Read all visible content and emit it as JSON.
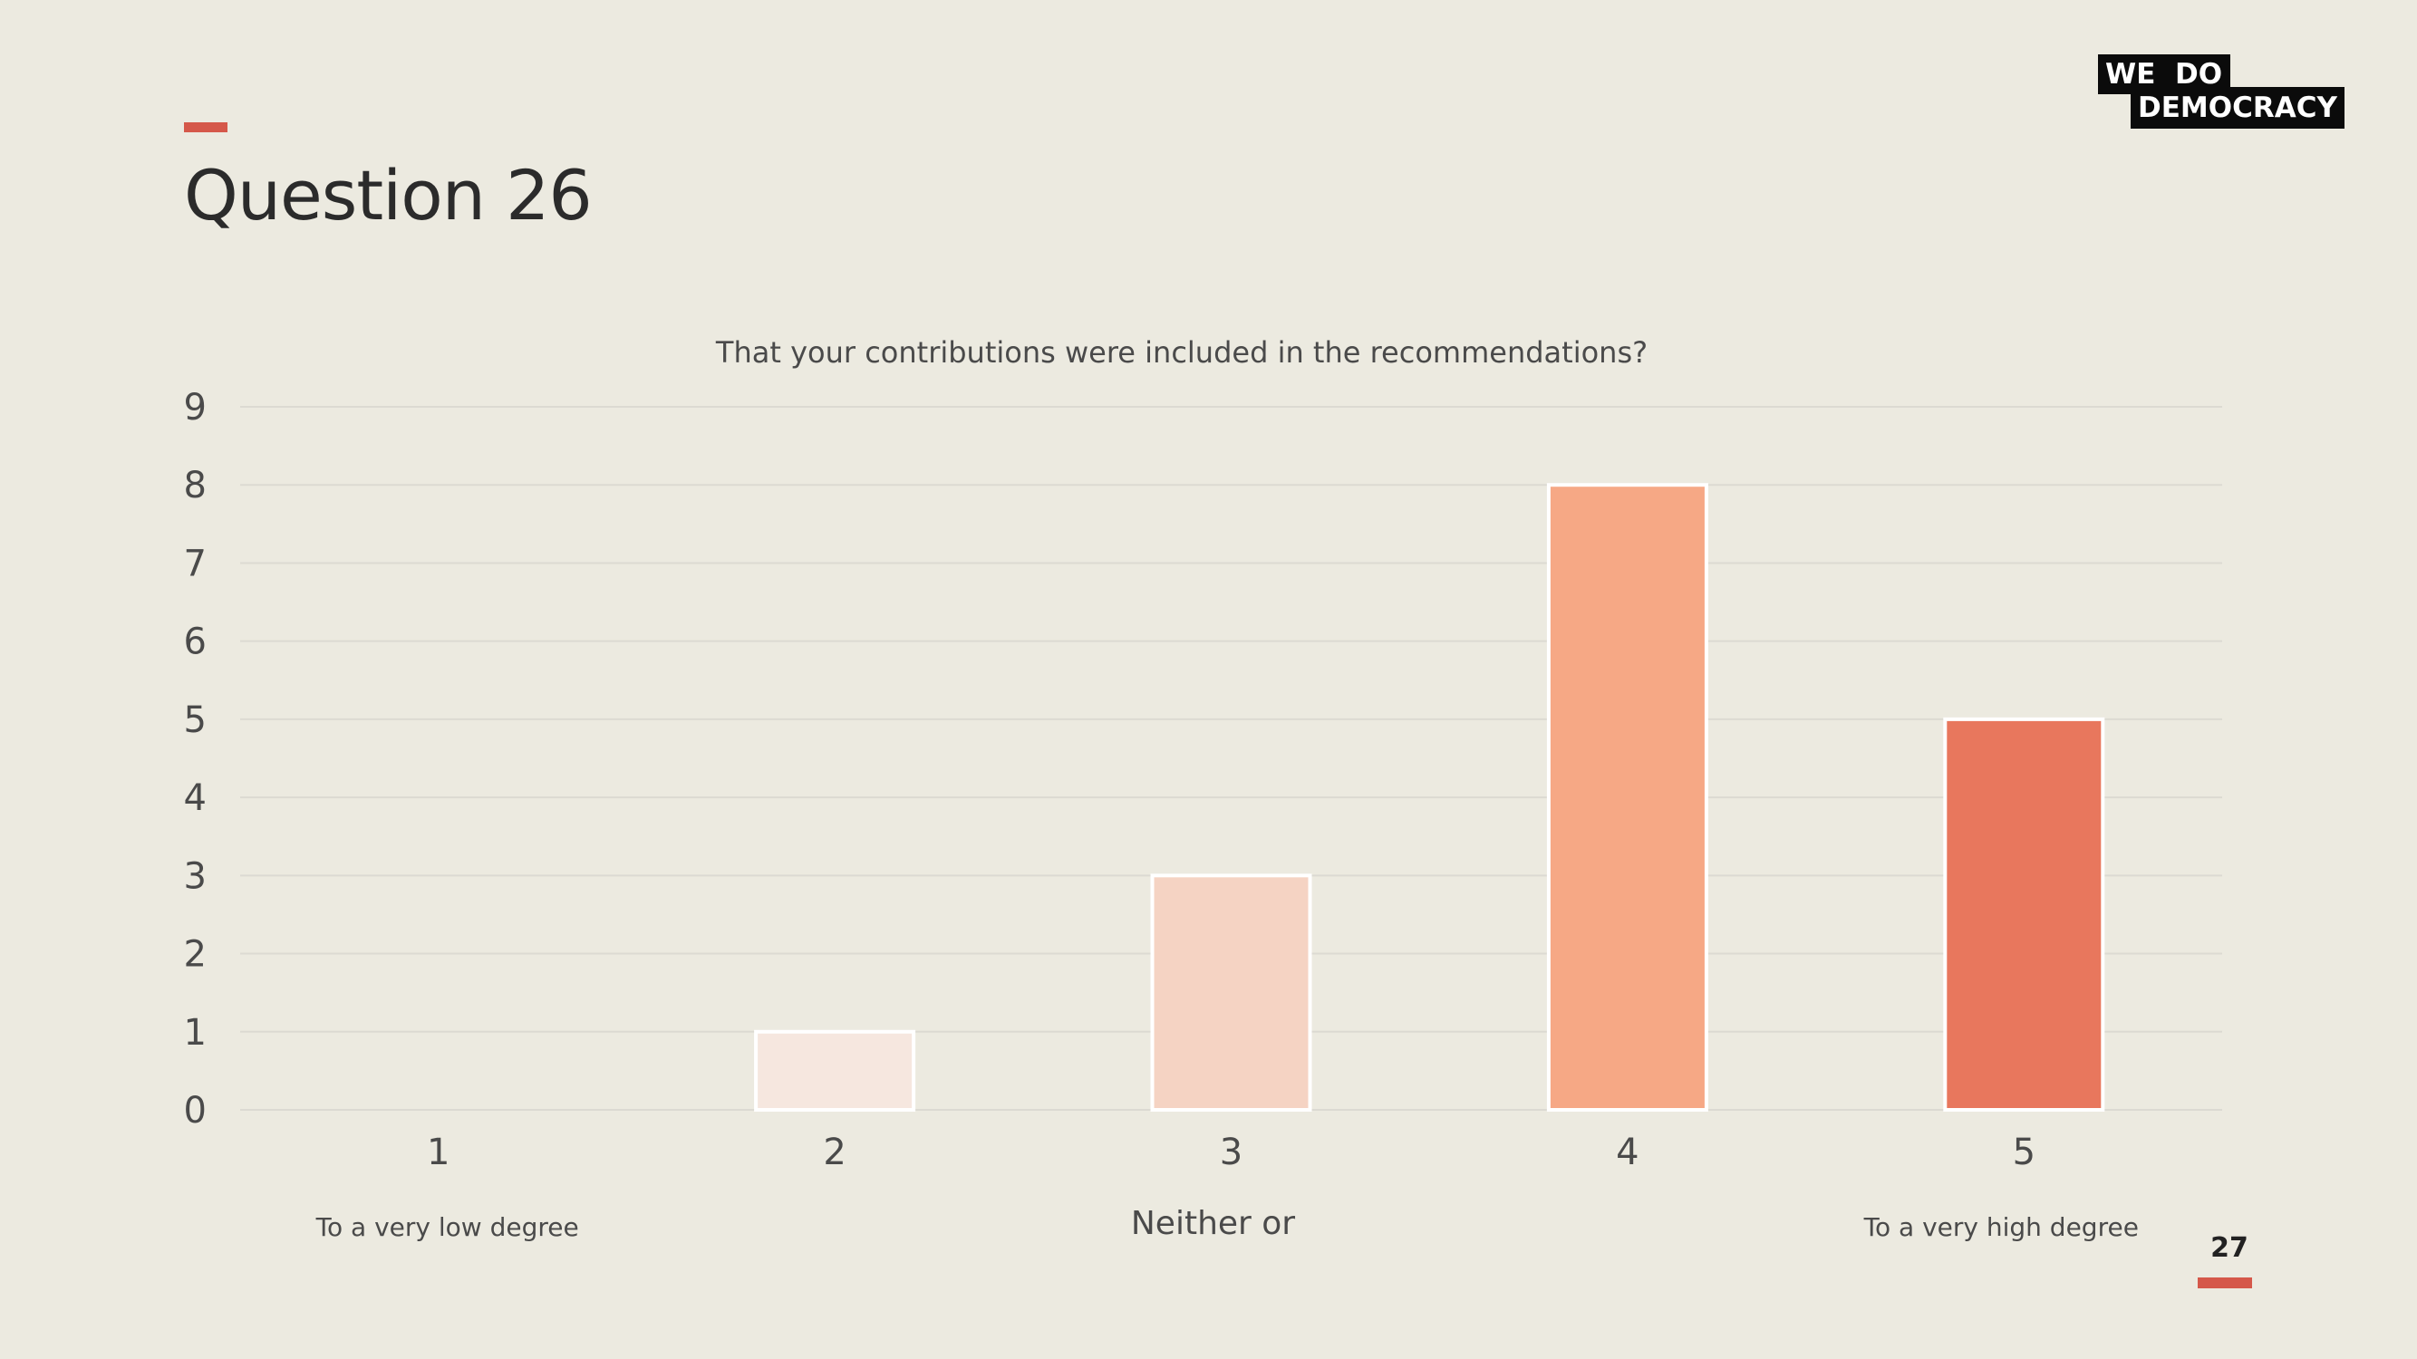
{
  "header": {
    "title": "Question 26"
  },
  "logo": {
    "line1": "WE  DO",
    "line2": "DEMOCRACY"
  },
  "colors": {
    "background": "#eceae0",
    "accent": "#d5584a",
    "grid": "#dcdad2",
    "text": "#4a4a4a",
    "bar_colors": [
      "#fbe9e3",
      "#f6e7df",
      "#f5d3c3",
      "#f6a885",
      "#e8775d"
    ]
  },
  "chart_data": {
    "type": "bar",
    "title": "That your contributions were included in the recommendations?",
    "xlabel": "",
    "ylabel": "",
    "categories": [
      "1",
      "2",
      "3",
      "4",
      "5"
    ],
    "values": [
      0,
      1,
      3,
      8,
      5
    ],
    "ylim": [
      0,
      9
    ],
    "yticks": [
      "0",
      "1",
      "2",
      "3",
      "4",
      "5",
      "6",
      "7",
      "8",
      "9"
    ],
    "grid": true,
    "legend": "none",
    "category_annotations": [
      {
        "category": "1",
        "text": "To a very low degree"
      },
      {
        "category": "3",
        "text": "Neither or"
      },
      {
        "category": "5",
        "text": "To a very high degree"
      }
    ]
  },
  "footer": {
    "page_number": "27"
  }
}
